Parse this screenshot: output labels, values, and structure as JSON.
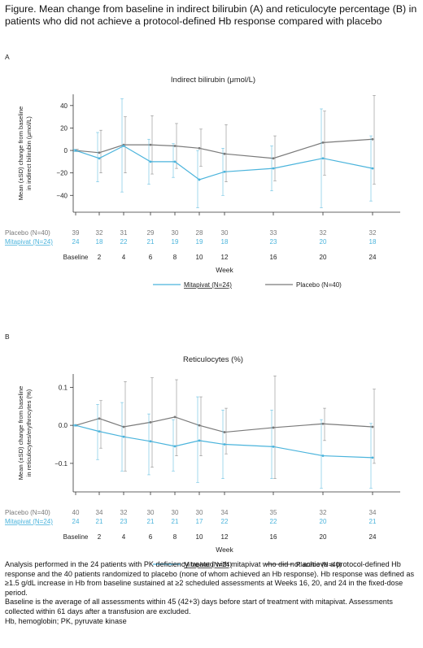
{
  "figure_title": "Figure. Mean change from baseline in indirect bilirubin (A) and reticulocyte percentage (B) in patients who did not achieve a protocol-defined Hb response compared with placebo",
  "colors": {
    "mitapivat": "#4bb4dc",
    "placebo": "#7a7a7a",
    "axis": "#333333"
  },
  "chart_data": [
    {
      "type": "line",
      "panel_label": "A",
      "title": "Indirect bilirubin (μmol/L)",
      "ylabel": "Mean (±SD) change from baseline in indirect bilirubin (μmol/L)",
      "ylabel_lines": [
        "Mean (±SD) change from baseline",
        "in indirect bilirubin (μmol/L)"
      ],
      "xlabel": "Week",
      "x": [
        0,
        2,
        4,
        6,
        8,
        10,
        12,
        16,
        20,
        24
      ],
      "x_tick_labels": [
        "Baseline",
        "2",
        "4",
        "6",
        "8",
        "10",
        "12",
        "16",
        "20",
        "24"
      ],
      "ylim": [
        -55,
        50
      ],
      "yticks": [
        -40,
        -20,
        0,
        20,
        40
      ],
      "ytick_labels": [
        "−40",
        "−20",
        "0",
        "20",
        "40"
      ],
      "series": [
        {
          "name": "Mitapivat (N=24)",
          "key": "mitapivat",
          "values": [
            0,
            -7,
            4,
            -10,
            -10,
            -26,
            -19,
            -16,
            -7,
            -16
          ],
          "err_low": [
            -1,
            -28,
            -37,
            -30,
            -24,
            -51,
            -40,
            -36,
            -51,
            -45
          ],
          "err_high": [
            1,
            16,
            46,
            10,
            6,
            0,
            2,
            4,
            37,
            13
          ]
        },
        {
          "name": "Placebo (N=40)",
          "key": "placebo",
          "values": [
            0,
            -2,
            5,
            5,
            4,
            2,
            -3,
            -7,
            7,
            10
          ],
          "err_low": [
            -1,
            -20,
            -20,
            -21,
            -16,
            -14,
            -28,
            -27,
            -22,
            -30
          ],
          "err_high": [
            1,
            18,
            30,
            31,
            24,
            19,
            23,
            13,
            35,
            49
          ]
        }
      ],
      "n_at_risk": [
        {
          "label": "Placebo (N=40)",
          "key": "placebo",
          "values": [
            "39",
            "32",
            "31",
            "29",
            "30",
            "28",
            "30",
            "33",
            "32",
            "32"
          ]
        },
        {
          "label": "Mitapivat (N=24)",
          "key": "mitapivat",
          "values": [
            "24",
            "18",
            "22",
            "21",
            "19",
            "19",
            "18",
            "23",
            "20",
            "18"
          ]
        }
      ],
      "legend": [
        "Mitapivat (N=24)",
        "Placebo (N=40)"
      ]
    },
    {
      "type": "line",
      "panel_label": "B",
      "title": "Reticulocytes (%)",
      "ylabel": "Mean (±SD) change from baseline in reticulocytes/erythrocytes (%)",
      "ylabel_lines": [
        "Mean (±SD) change from baseline",
        "in reticulocytes/erythrocytes (%)"
      ],
      "xlabel": "Week",
      "x": [
        0,
        2,
        4,
        6,
        8,
        10,
        12,
        16,
        20,
        24
      ],
      "x_tick_labels": [
        "Baseline",
        "2",
        "4",
        "6",
        "8",
        "10",
        "12",
        "16",
        "20",
        "24"
      ],
      "ylim": [
        -0.175,
        0.135
      ],
      "yticks": [
        -0.1,
        0,
        0.1
      ],
      "ytick_labels": [
        "−0.1",
        "0.0",
        "0.1"
      ],
      "series": [
        {
          "name": "Mitapivat (N=24)",
          "key": "mitapivat",
          "values": [
            0,
            -0.016,
            -0.03,
            -0.042,
            -0.055,
            -0.04,
            -0.05,
            -0.056,
            -0.08,
            -0.085
          ],
          "err_low": [
            -0.002,
            -0.09,
            -0.12,
            -0.13,
            -0.12,
            -0.15,
            -0.14,
            -0.14,
            -0.165,
            -0.165
          ],
          "err_high": [
            0.002,
            0.055,
            0.06,
            0.03,
            0.015,
            0.075,
            0.04,
            0.04,
            0.015,
            0.005
          ]
        },
        {
          "name": "Placebo (N=40)",
          "key": "placebo",
          "values": [
            0,
            0.018,
            -0.004,
            0.008,
            0.022,
            0,
            -0.018,
            -0.006,
            0.004,
            -0.004
          ],
          "err_low": [
            -0.002,
            -0.06,
            -0.12,
            -0.11,
            -0.08,
            -0.08,
            -0.075,
            -0.14,
            -0.04,
            -0.1
          ],
          "err_high": [
            0.002,
            0.065,
            0.115,
            0.125,
            0.12,
            0.075,
            0.045,
            0.13,
            0.045,
            0.095
          ]
        }
      ],
      "n_at_risk": [
        {
          "label": "Placebo (N=40)",
          "key": "placebo",
          "values": [
            "40",
            "34",
            "32",
            "30",
            "30",
            "30",
            "34",
            "35",
            "32",
            "34"
          ]
        },
        {
          "label": "Mitapivat (N=24)",
          "key": "mitapivat",
          "values": [
            "24",
            "21",
            "23",
            "21",
            "21",
            "17",
            "22",
            "22",
            "20",
            "21"
          ]
        }
      ],
      "legend": [
        "Mitapivat (N=24)",
        "Placebo (N=40)"
      ]
    }
  ],
  "footnotes": [
    "Analysis performed in the 24 patients with PK deficiency treated with mitapivat who did not achieve a protocol-defined Hb response and the 40 patients randomized to placebo (none of whom achieved an Hb response). Hb response was defined as ≥1.5 g/dL increase in Hb from baseline sustained at ≥2 scheduled assessments at Weeks 16, 20, and 24 in the fixed-dose period.",
    "Baseline is the average of all assessments within 45 (42+3) days before start of treatment with mitapivat. Assessments collected within 61 days after a transfusion are excluded.",
    "Hb, hemoglobin; PK, pyruvate kinase"
  ]
}
